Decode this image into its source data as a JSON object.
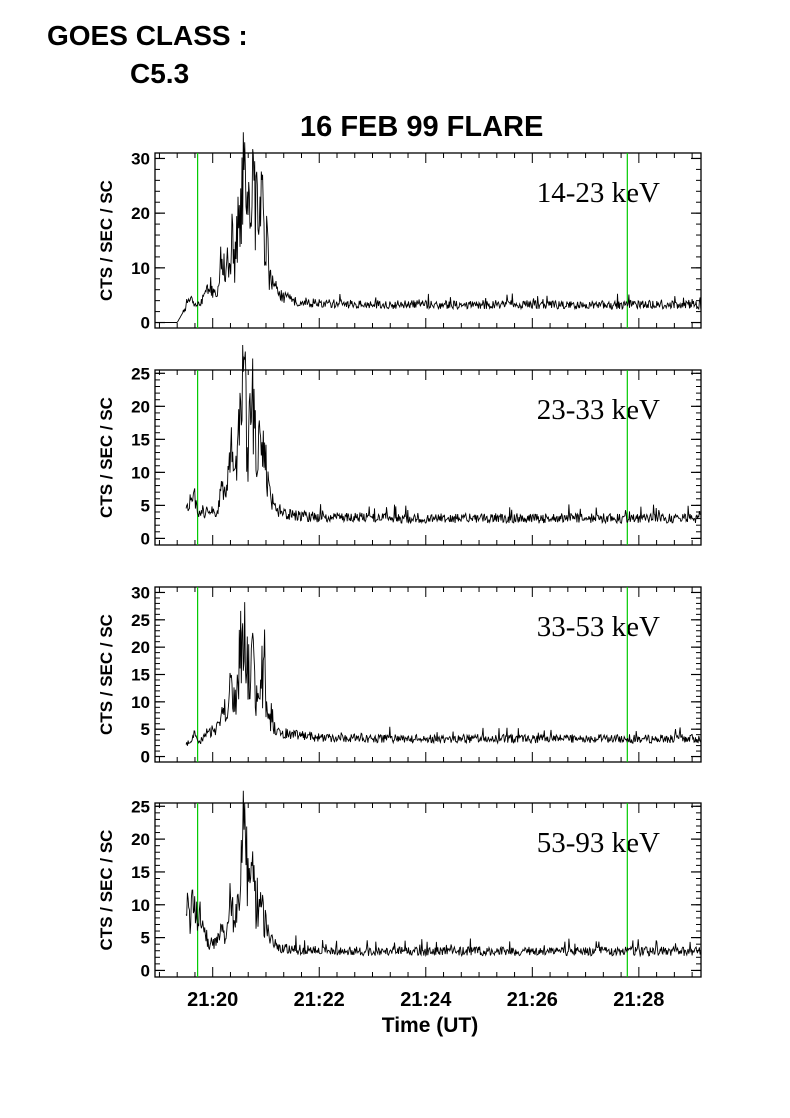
{
  "header": {
    "goes_label": "GOES CLASS :",
    "goes_value": "C5.3",
    "title": "16 FEB 99 FLARE"
  },
  "colors": {
    "trace": "#000000",
    "marker_lines": "#00cc00",
    "axes": "#000000"
  },
  "chart_data": [
    {
      "type": "line",
      "band": "14-23 keV",
      "ylabel": "CTS / SEC / SC",
      "ylim": [
        -1,
        31
      ],
      "yticks": [
        0,
        10,
        20,
        30
      ],
      "xlim": [
        "21:18:55",
        "21:29:10"
      ],
      "marker_times": [
        "21:19:43",
        "21:27:47"
      ],
      "series": [
        {
          "x": [
            "21:19:00",
            "21:19:20",
            "21:19:27",
            "21:19:35",
            "21:19:45",
            "21:19:55",
            "21:20:05",
            "21:20:10",
            "21:20:15",
            "21:20:20",
            "21:20:25",
            "21:20:30",
            "21:20:35",
            "21:20:40",
            "21:20:45",
            "21:20:50",
            "21:20:55",
            "21:21:05",
            "21:21:15",
            "21:21:30",
            "21:22:00",
            "21:23:00",
            "21:24:00",
            "21:25:00",
            "21:26:00",
            "21:27:00",
            "21:28:00",
            "21:29:00",
            "21:29:10"
          ],
          "y": [
            0,
            0,
            2,
            4,
            3,
            6,
            5,
            11,
            8,
            14,
            12,
            20,
            26,
            18,
            28,
            19,
            22,
            8,
            5,
            4,
            3.5,
            3.2,
            3.3,
            3.2,
            3.3,
            3.1,
            3.3,
            3.2,
            3.2
          ]
        }
      ]
    },
    {
      "type": "line",
      "band": "23-33 keV",
      "ylabel": "CTS / SEC / SC",
      "ylim": [
        -1,
        25.5
      ],
      "yticks": [
        0,
        5,
        10,
        15,
        20,
        25
      ],
      "xlim": [
        "21:18:55",
        "21:29:10"
      ],
      "marker_times": [
        "21:19:43",
        "21:27:47"
      ],
      "series": [
        {
          "x": [
            "21:19:30",
            "21:19:38",
            "21:19:45",
            "21:19:55",
            "21:20:05",
            "21:20:10",
            "21:20:15",
            "21:20:20",
            "21:20:25",
            "21:20:30",
            "21:20:35",
            "21:20:40",
            "21:20:45",
            "21:20:50",
            "21:20:55",
            "21:21:05",
            "21:21:15",
            "21:21:30",
            "21:22:00",
            "21:23:00",
            "21:24:00",
            "21:25:00",
            "21:26:00",
            "21:27:00",
            "21:28:00",
            "21:29:00",
            "21:29:10"
          ],
          "y": [
            4,
            7,
            3.5,
            4.5,
            4,
            8,
            6,
            11,
            9,
            16,
            25,
            13,
            20,
            11,
            16,
            6,
            4,
            3.5,
            3.2,
            3.1,
            3.0,
            3.1,
            3.0,
            3.1,
            3.0,
            3.1,
            3.0
          ]
        }
      ]
    },
    {
      "type": "line",
      "band": "33-53 keV",
      "ylabel": "CTS / SEC / SC",
      "ylim": [
        -1,
        31
      ],
      "yticks": [
        0,
        5,
        10,
        15,
        20,
        25,
        30
      ],
      "xlim": [
        "21:18:55",
        "21:29:10"
      ],
      "marker_times": [
        "21:19:43",
        "21:27:47"
      ],
      "series": [
        {
          "x": [
            "21:19:30",
            "21:19:38",
            "21:19:45",
            "21:19:55",
            "21:20:05",
            "21:20:10",
            "21:20:15",
            "21:20:20",
            "21:20:25",
            "21:20:30",
            "21:20:35",
            "21:20:40",
            "21:20:45",
            "21:20:50",
            "21:20:55",
            "21:21:05",
            "21:21:15",
            "21:21:30",
            "21:22:00",
            "21:23:00",
            "21:24:00",
            "21:25:00",
            "21:26:00",
            "21:27:00",
            "21:28:00",
            "21:29:00",
            "21:29:10"
          ],
          "y": [
            2,
            4,
            2.5,
            4.5,
            5,
            8,
            6,
            12,
            9,
            17,
            24,
            14,
            19,
            10,
            16,
            6,
            4.5,
            4,
            3.5,
            3.3,
            3.2,
            3.3,
            3.2,
            3.3,
            3.2,
            3.3,
            3.2
          ]
        }
      ]
    },
    {
      "type": "line",
      "band": "53-93 keV",
      "ylabel": "CTS / SEC / SC",
      "ylim": [
        -1,
        25.5
      ],
      "yticks": [
        0,
        5,
        10,
        15,
        20,
        25
      ],
      "xlim": [
        "21:18:55",
        "21:29:10"
      ],
      "xticks": [
        "21:20",
        "21:22",
        "21:24",
        "21:26",
        "21:28"
      ],
      "xlabel": "Time (UT)",
      "marker_times": [
        "21:19:43",
        "21:27:47"
      ],
      "series": [
        {
          "x": [
            "21:19:30",
            "21:19:38",
            "21:19:45",
            "21:19:55",
            "21:20:05",
            "21:20:10",
            "21:20:15",
            "21:20:20",
            "21:20:25",
            "21:20:30",
            "21:20:35",
            "21:20:40",
            "21:20:45",
            "21:20:50",
            "21:20:55",
            "21:21:05",
            "21:21:15",
            "21:21:30",
            "21:22:00",
            "21:23:00",
            "21:24:00",
            "21:25:00",
            "21:26:00",
            "21:27:00",
            "21:28:00",
            "21:29:00",
            "21:29:10"
          ],
          "y": [
            8,
            9,
            8.5,
            4,
            4.5,
            6,
            5,
            10,
            8,
            14,
            23,
            12,
            14,
            8,
            10,
            5,
            3.5,
            3.2,
            3.0,
            2.9,
            2.9,
            2.9,
            2.9,
            2.9,
            2.9,
            2.9,
            2.9
          ]
        }
      ]
    }
  ]
}
